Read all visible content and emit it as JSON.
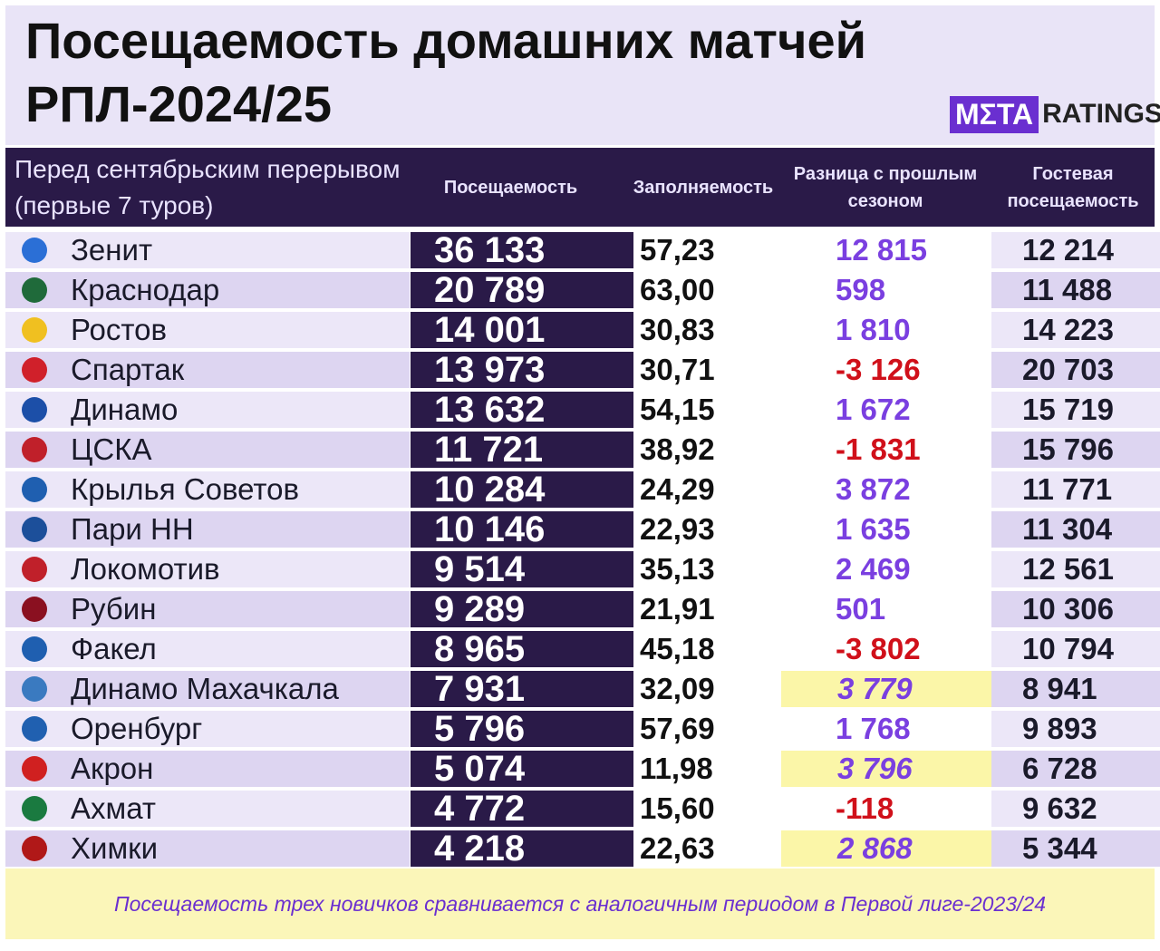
{
  "header": {
    "title": "Посещаемость домашних матчей РПЛ-2024/25",
    "logo_meta": "MΣTA",
    "logo_ratings": "RATINGS"
  },
  "table": {
    "columns": [
      "Перед сентябрьским перерывом (первые 7 туров)",
      "Посещаемость",
      "Заполняемость",
      "Разница с прошлым сезоном",
      "Гостевая посещаемость"
    ],
    "rows": [
      [
        "Зенит",
        "36 133",
        "57,23",
        "12 815",
        "12 214"
      ],
      [
        "Краснодар",
        "20 789",
        "63,00",
        "598",
        "11 488"
      ],
      [
        "Ростов",
        "14 001",
        "30,83",
        "1 810",
        "14 223"
      ],
      [
        "Спартак",
        "13 973",
        "30,71",
        "-3 126",
        "20 703"
      ],
      [
        "Динамо",
        "13 632",
        "54,15",
        "1 672",
        "15 719"
      ],
      [
        "ЦСКА",
        "11 721",
        "38,92",
        "-1 831",
        "15 796"
      ],
      [
        "Крылья Советов",
        "10 284",
        "24,29",
        "3 872",
        "11 771"
      ],
      [
        "Пари НН",
        "10 146",
        "22,93",
        "1 635",
        "11 304"
      ],
      [
        "Локомотив",
        "9 514",
        "35,13",
        "2 469",
        "12 561"
      ],
      [
        "Рубин",
        "9 289",
        "21,91",
        "501",
        "10 306"
      ],
      [
        "Факел",
        "8 965",
        "45,18",
        "-3 802",
        "10 794"
      ],
      [
        "Динамо Махачкала",
        "7 931",
        "32,09",
        "3 779",
        "8 941"
      ],
      [
        "Оренбург",
        "5 796",
        "57,69",
        "1 768",
        "9 893"
      ],
      [
        "Акрон",
        "5 074",
        "11,98",
        "3 796",
        "6 728"
      ],
      [
        "Ахмат",
        "4 772",
        "15,60",
        "-118",
        "9 632"
      ],
      [
        "Химки",
        "4 218",
        "22,63",
        "2 868",
        "5 344"
      ]
    ]
  },
  "footnote": "Посещаемость трех новичков сравнивается с аналогичным периодом в Первой лиге-2023/24"
}
